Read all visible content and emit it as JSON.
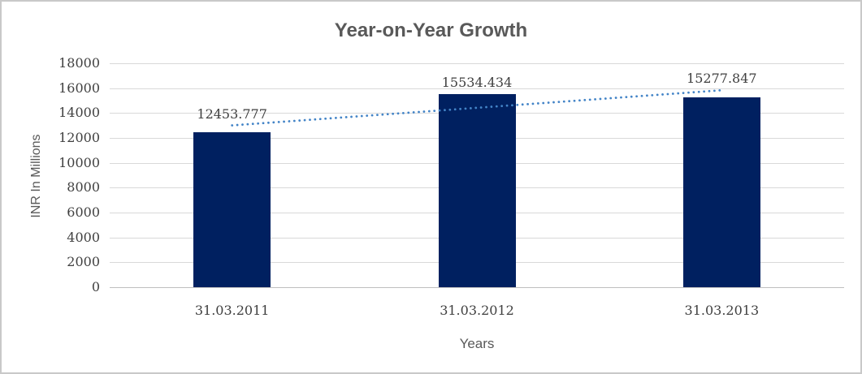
{
  "window": {
    "background_color": "#ffffff",
    "border_color": "#c9c9c9"
  },
  "chart_data": {
    "type": "bar",
    "title": "Year-on-Year Growth",
    "xlabel": "Years",
    "ylabel": "INR In Millions",
    "categories": [
      "31.03.2011",
      "31.03.2012",
      "31.03.2013"
    ],
    "values": [
      12453.777,
      15534.434,
      15277.847
    ],
    "data_labels": [
      "12453.777",
      "15534.434",
      "15277.847"
    ],
    "ylim": [
      0,
      18000
    ],
    "ytick_step": 2000,
    "ytick_labels": [
      "0",
      "2000",
      "4000",
      "6000",
      "8000",
      "10000",
      "12000",
      "14000",
      "16000",
      "18000"
    ],
    "grid": true,
    "legend_position": "none",
    "bar_color": "#002060",
    "gridline_color": "#d9d9d9",
    "axis_line_color": "#bfbfbf",
    "title_color": "#595959",
    "axis_title_color": "#595959",
    "tick_label_color": "#404040",
    "trendline": {
      "type": "linear",
      "style": "dotted",
      "color": "#4384c7",
      "endpoint_values": [
        13010.3,
        15834.4
      ]
    }
  }
}
